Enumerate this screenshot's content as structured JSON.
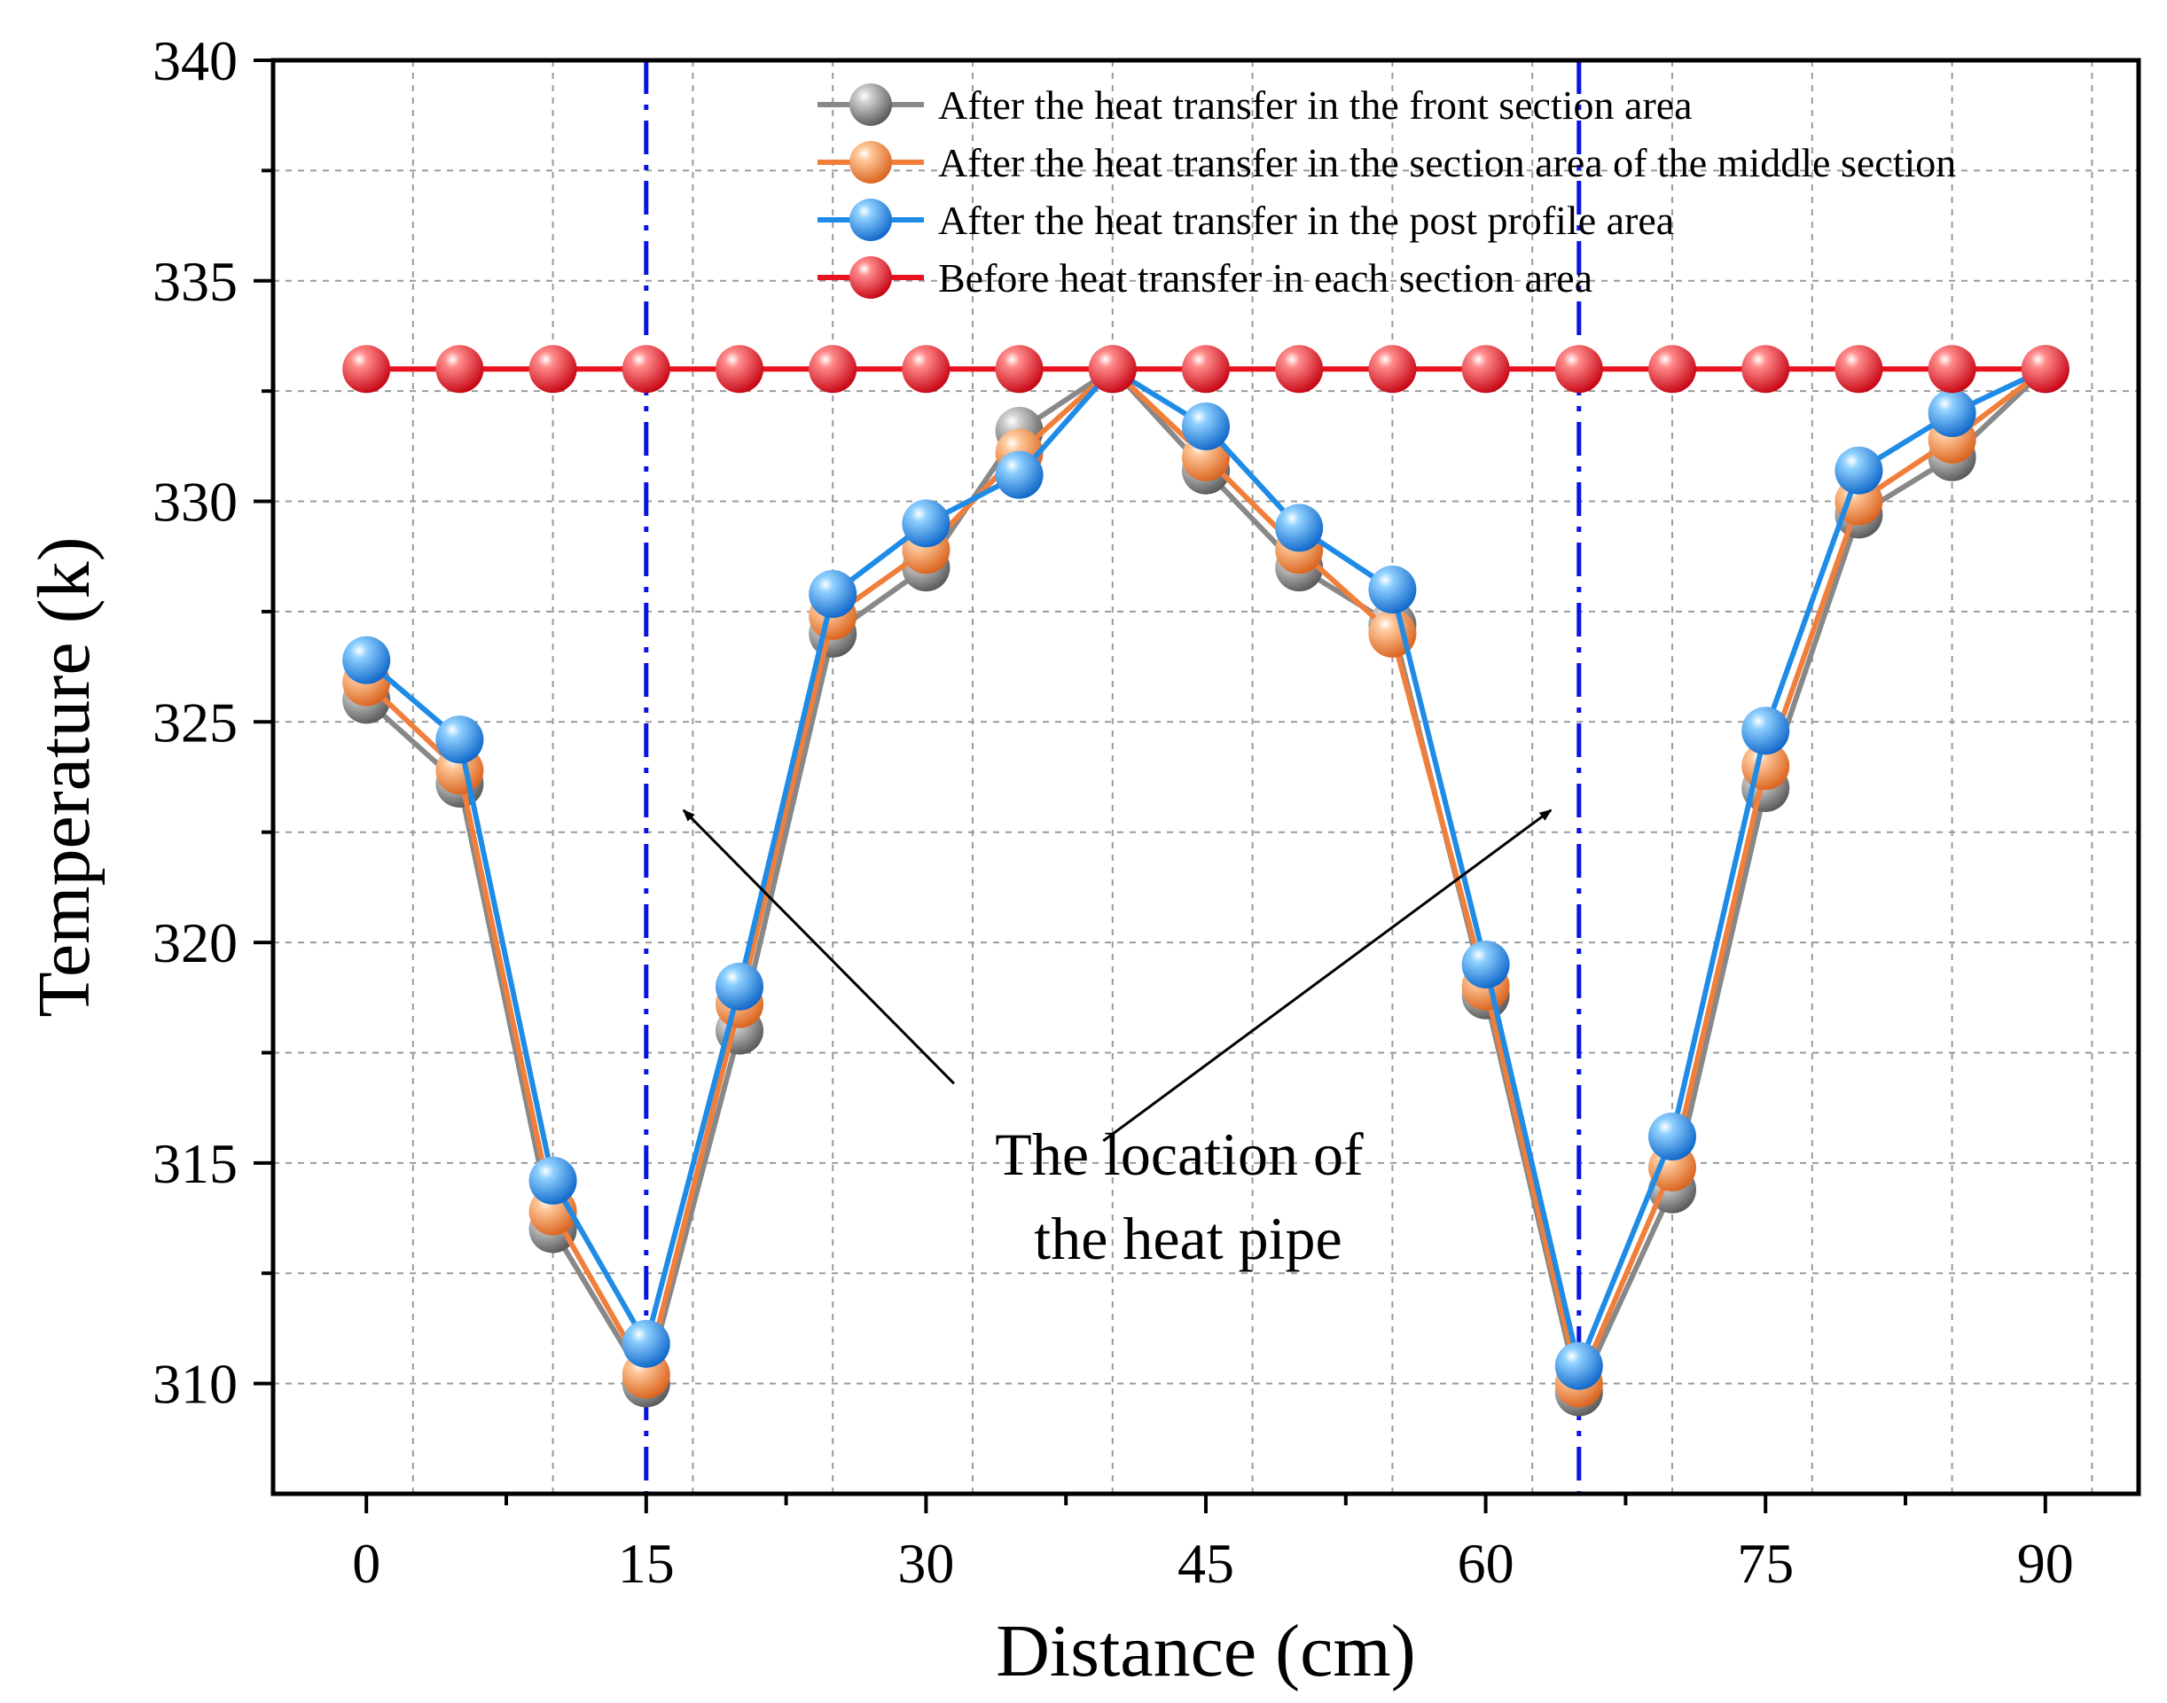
{
  "chart_data": {
    "type": "line",
    "title": "",
    "xlabel": "Distance (cm)",
    "ylabel": "Temperature (k)",
    "xlim": [
      -5,
      95
    ],
    "ylim": [
      307.5,
      340
    ],
    "xticks": [
      0,
      15,
      30,
      45,
      60,
      75,
      90
    ],
    "yticks": [
      310,
      315,
      320,
      325,
      330,
      335,
      340
    ],
    "grid": true,
    "legend_position": "top-right",
    "x": [
      0,
      5,
      10,
      15,
      20,
      25,
      30,
      35,
      40,
      45,
      50,
      55,
      60,
      65,
      70,
      75,
      80,
      85,
      90
    ],
    "series": [
      {
        "name": "After the heat transfer in the front section area",
        "color": "#888888",
        "values": [
          325.5,
          323.6,
          313.5,
          310.0,
          318.0,
          327.0,
          328.5,
          331.6,
          333.0,
          330.7,
          328.5,
          327.2,
          318.8,
          309.8,
          314.4,
          323.5,
          329.7,
          331.0,
          333.0
        ]
      },
      {
        "name": "After the heat transfer in the section area of the middle section",
        "color": "#f07f3c",
        "values": [
          325.9,
          323.9,
          313.9,
          310.2,
          318.6,
          327.4,
          328.9,
          331.1,
          333.0,
          331.0,
          328.9,
          327.0,
          319.0,
          310.0,
          314.9,
          324.0,
          330.0,
          331.4,
          333.0
        ]
      },
      {
        "name": "After the heat transfer in the post profile area",
        "color": "#1e8be6",
        "values": [
          326.4,
          324.6,
          314.6,
          310.9,
          319.0,
          327.9,
          329.5,
          330.6,
          333.0,
          331.7,
          329.4,
          328.0,
          319.5,
          310.4,
          315.6,
          324.8,
          330.7,
          332.0,
          333.0
        ]
      },
      {
        "name": "Before heat transfer in each section area",
        "color": "#e8121e",
        "values": [
          333.0,
          333.0,
          333.0,
          333.0,
          333.0,
          333.0,
          333.0,
          333.0,
          333.0,
          333.0,
          333.0,
          333.0,
          333.0,
          333.0,
          333.0,
          333.0,
          333.0,
          333.0,
          333.0
        ]
      }
    ],
    "vertical_lines": [
      15,
      65
    ],
    "vertical_line_color": "#0a14e0",
    "annotation": {
      "lines": [
        "The location of",
        "the heat pipe"
      ],
      "arrows_to": [
        [
          17,
          323.0
        ],
        [
          63.5,
          323.0
        ]
      ],
      "arrows_from": [
        [
          31.5,
          316.8
        ],
        [
          39.5,
          315.5
        ]
      ]
    }
  }
}
